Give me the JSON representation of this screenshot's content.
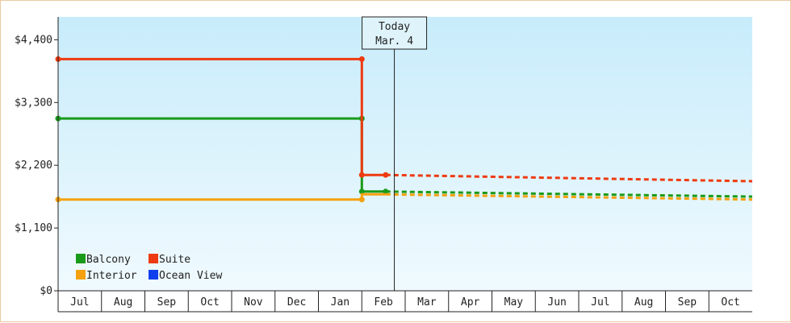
{
  "chart_data": {
    "type": "line",
    "xlabel": "",
    "ylabel": "",
    "ylim": [
      0,
      4800
    ],
    "y_ticks": [
      {
        "value": 0,
        "label": "$0"
      },
      {
        "value": 1100,
        "label": "$1,100"
      },
      {
        "value": 2200,
        "label": "$2,200"
      },
      {
        "value": 3300,
        "label": "$3,300"
      },
      {
        "value": 4400,
        "label": "$4,400"
      }
    ],
    "x_months": [
      "Jul",
      "Aug",
      "Sep",
      "Oct",
      "Nov",
      "Dec",
      "Jan",
      "Feb",
      "Mar",
      "Apr",
      "May",
      "Jun",
      "Jul",
      "Aug",
      "Sep",
      "Oct"
    ],
    "xlim": [
      0,
      16
    ],
    "grid": false,
    "today_marker": {
      "line1": "Today",
      "line2": "Mar. 4",
      "x": 7.75
    },
    "legend_position": "bottom-left",
    "series": [
      {
        "name": "Balcony",
        "color": "#1a9a1a",
        "actual": [
          [
            0,
            3020
          ],
          [
            7.0,
            3020
          ],
          [
            7.0,
            1740
          ],
          [
            7.55,
            1740
          ]
        ],
        "actual_markers": [
          [
            0,
            3020
          ],
          [
            7.0,
            3020
          ],
          [
            7.0,
            1740
          ],
          [
            7.55,
            1740
          ]
        ],
        "forecast": [
          [
            7.55,
            1740
          ],
          [
            16,
            1650
          ]
        ]
      },
      {
        "name": "Suite",
        "color": "#ee3a10",
        "actual": [
          [
            0,
            4060
          ],
          [
            7.0,
            4060
          ],
          [
            7.0,
            2030
          ],
          [
            7.55,
            2030
          ]
        ],
        "actual_markers": [
          [
            0,
            4060
          ],
          [
            7.0,
            4060
          ],
          [
            7.0,
            2030
          ],
          [
            7.55,
            2030
          ]
        ],
        "forecast": [
          [
            7.55,
            2030
          ],
          [
            16,
            1920
          ]
        ]
      },
      {
        "name": "Interior",
        "color": "#f5a10f",
        "actual": [
          [
            0,
            1600
          ],
          [
            7.0,
            1600
          ],
          [
            7.0,
            1690
          ],
          [
            7.55,
            1690
          ]
        ],
        "actual_markers": [
          [
            0,
            1600
          ],
          [
            7.0,
            1600
          ]
        ],
        "forecast": [
          [
            7.55,
            1690
          ],
          [
            16,
            1600
          ]
        ]
      },
      {
        "name": "Ocean View",
        "color": "#1040ee",
        "actual": [],
        "actual_markers": [],
        "forecast": []
      }
    ]
  }
}
